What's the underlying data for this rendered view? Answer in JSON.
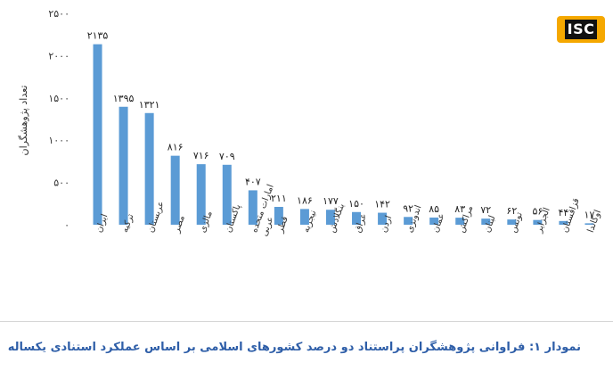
{
  "logo": {
    "text": "ISC",
    "bg": "#f5a800",
    "fg": "#111111"
  },
  "caption": "نمودار ۱: فراوانی پژوهشگران پراستناد دو درصد کشورهای اسلامی بر اساس عملکرد استنادی یکساله",
  "chart_data": {
    "type": "bar",
    "ylabel": "تعداد پژوهشگران",
    "xlabel": "",
    "ylim": [
      0,
      2500
    ],
    "yticks": [
      0,
      500,
      1000,
      1500,
      2000,
      2500
    ],
    "ytick_labels": [
      "۰",
      "۵۰۰",
      "۱۰۰۰",
      "۱۵۰۰",
      "۲۰۰۰",
      "۲۵۰۰"
    ],
    "grid": false,
    "bar_color": "#5b9bd5",
    "categories": [
      "ایران",
      "ترکیه",
      "عربستان",
      "مصر",
      "مالزی",
      "پاکستان",
      "امارات متحده عربی",
      "قطر",
      "نیجریه",
      "بنگلادش",
      "عراق",
      "اردن",
      "اندونزی",
      "عمان",
      "مراکش",
      "لبنان",
      "تونس",
      "الجزایر",
      "قزاقستان",
      "اوگاندا"
    ],
    "values": [
      2135,
      1395,
      1321,
      816,
      716,
      709,
      407,
      211,
      186,
      177,
      150,
      142,
      92,
      85,
      83,
      72,
      62,
      56,
      44,
      17
    ],
    "value_labels": [
      "۲۱۳۵",
      "۱۳۹۵",
      "۱۳۲۱",
      "۸۱۶",
      "۷۱۶",
      "۷۰۹",
      "۴۰۷",
      "۲۱۱",
      "۱۸۶",
      "۱۷۷",
      "۱۵۰",
      "۱۴۲",
      "۹۲",
      "۸۵",
      "۸۳",
      "۷۲",
      "۶۲",
      "۵۶",
      "۴۴",
      "۱۷"
    ]
  }
}
